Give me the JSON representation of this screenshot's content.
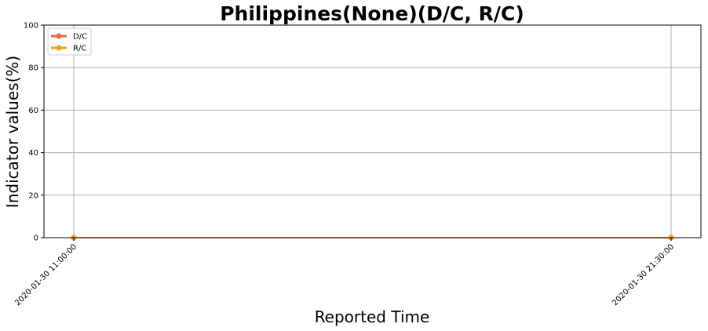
{
  "chart_data": {
    "type": "line",
    "title": "Philippines(None)(D/C, R/C)",
    "xlabel": "Reported Time",
    "ylabel": "Indicator values(%)",
    "x": [
      "2020-01-30 11:00:00",
      "2020-01-30 21:30:00"
    ],
    "ylim": [
      0,
      100
    ],
    "yticks": [
      0,
      20,
      40,
      60,
      80,
      100
    ],
    "grid": true,
    "legend_position": "top-left",
    "series": [
      {
        "name": "D/C",
        "values": [
          0,
          0
        ],
        "color": "#f0614f",
        "marker": "circle"
      },
      {
        "name": "R/C",
        "values": [
          0,
          0
        ],
        "color": "#f5a30a",
        "marker": "circle"
      }
    ]
  }
}
